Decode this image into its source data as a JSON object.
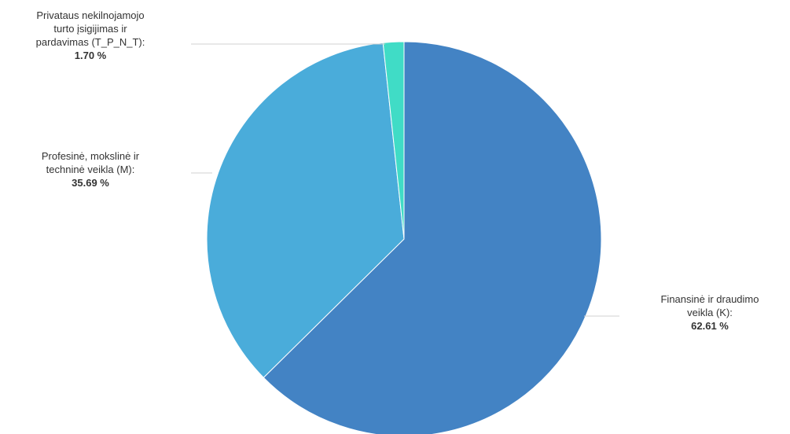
{
  "chart_data": {
    "type": "pie",
    "title": "",
    "start_angle": "12 o'clock, clockwise",
    "legend": "none",
    "slices": [
      {
        "label": "Finansinė ir draudimo veikla (K):",
        "value": 62.61,
        "value_text": "62.61 %",
        "color": "#4383C4"
      },
      {
        "label": "Profesinė, mokslinė ir techninė veikla (M):",
        "value": 35.69,
        "value_text": "35.69 %",
        "color": "#4AACDA"
      },
      {
        "label": "Privataus nekilnojamojo turto įsigijimas ir pardavimas (T_P_N_T):",
        "value": 1.7,
        "value_text": "1.70 %",
        "color": "#40DCC6"
      }
    ]
  }
}
